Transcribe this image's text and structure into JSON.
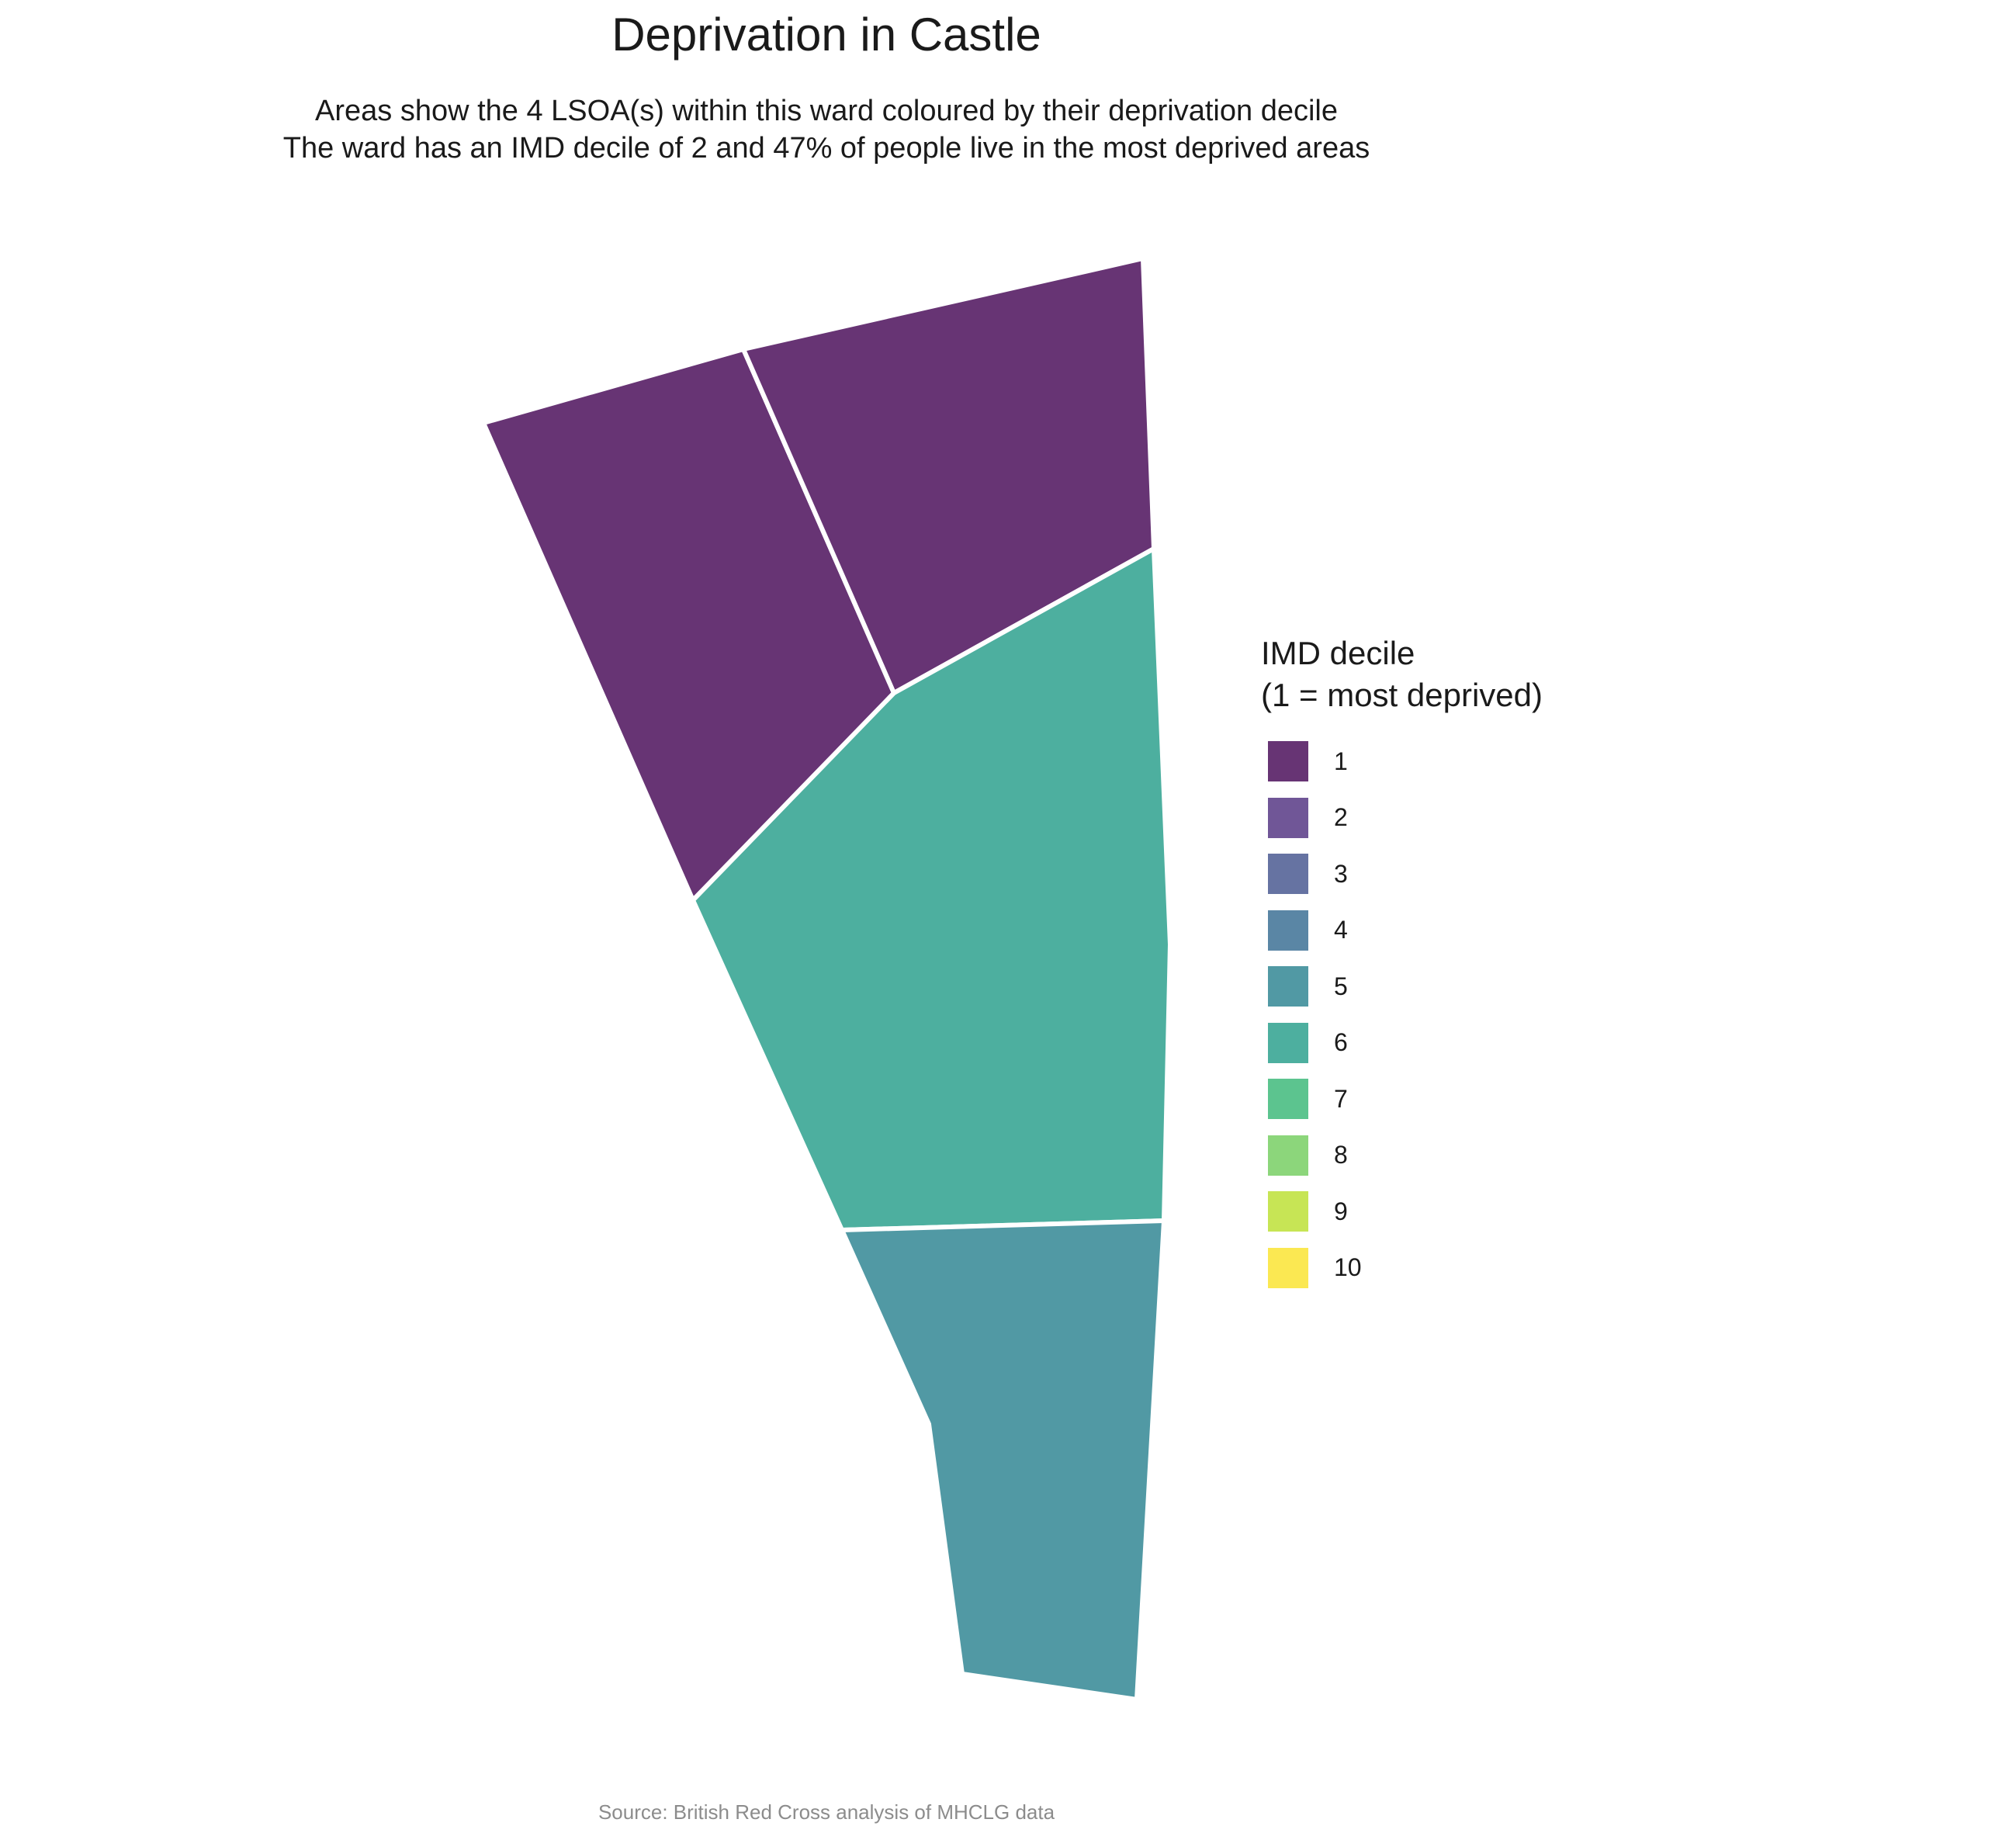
{
  "title": "Deprivation in Castle",
  "subtitle_line1": "Areas show the 4 LSOA(s) within this ward coloured by their deprivation decile",
  "subtitle_line2": "The ward has an IMD decile of 2 and 47% of people live in the most deprived areas",
  "caption": "Source: British Red Cross analysis of MHCLG data",
  "legend": {
    "title_line1": "IMD decile",
    "title_line2": "(1 = most deprived)",
    "items": [
      {
        "label": "1",
        "color": "#673474"
      },
      {
        "label": "2",
        "color": "#705697"
      },
      {
        "label": "3",
        "color": "#6673a2"
      },
      {
        "label": "4",
        "color": "#5a86a5"
      },
      {
        "label": "5",
        "color": "#5199a4"
      },
      {
        "label": "6",
        "color": "#4daf9f"
      },
      {
        "label": "7",
        "color": "#5cc48f"
      },
      {
        "label": "8",
        "color": "#8cd67b"
      },
      {
        "label": "9",
        "color": "#c7e555"
      },
      {
        "label": "10",
        "color": "#fbe852"
      }
    ]
  },
  "areas": [
    {
      "name": "lsoa-northwest",
      "decile": 1,
      "color": "#673474"
    },
    {
      "name": "lsoa-northeast",
      "decile": 1,
      "color": "#673474"
    },
    {
      "name": "lsoa-central",
      "decile": 6,
      "color": "#4daf9f"
    },
    {
      "name": "lsoa-south",
      "decile": 5,
      "color": "#5199a4"
    }
  ]
}
